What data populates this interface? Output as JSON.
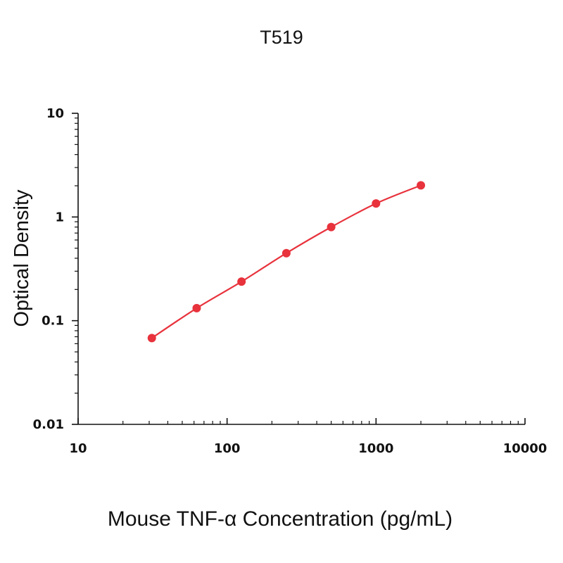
{
  "chart_data": {
    "type": "scatter",
    "title": "T519",
    "xlabel": "Mouse TNF-α Concentration (pg/mL)",
    "ylabel": "Optical Density",
    "x_scale": "log",
    "y_scale": "log",
    "xlim": [
      10,
      10000
    ],
    "ylim": [
      0.01,
      10
    ],
    "x_ticks": [
      {
        "value": 10,
        "label": "10"
      },
      {
        "value": 100,
        "label": "100"
      },
      {
        "value": 1000,
        "label": "1000"
      },
      {
        "value": 10000,
        "label": "10000"
      }
    ],
    "y_ticks": [
      {
        "value": 0.01,
        "label": "0.01"
      },
      {
        "value": 0.1,
        "label": "0.1"
      },
      {
        "value": 1,
        "label": "1"
      },
      {
        "value": 10,
        "label": "10"
      }
    ],
    "grid": false,
    "legend": "none",
    "series": [
      {
        "color": "#e8323c",
        "fit_curve": true,
        "points": [
          {
            "x": 31.25,
            "y": 0.068
          },
          {
            "x": 62.5,
            "y": 0.132
          },
          {
            "x": 125,
            "y": 0.238
          },
          {
            "x": 250,
            "y": 0.448
          },
          {
            "x": 500,
            "y": 0.8
          },
          {
            "x": 1000,
            "y": 1.35
          },
          {
            "x": 2000,
            "y": 2.02
          }
        ]
      }
    ]
  }
}
